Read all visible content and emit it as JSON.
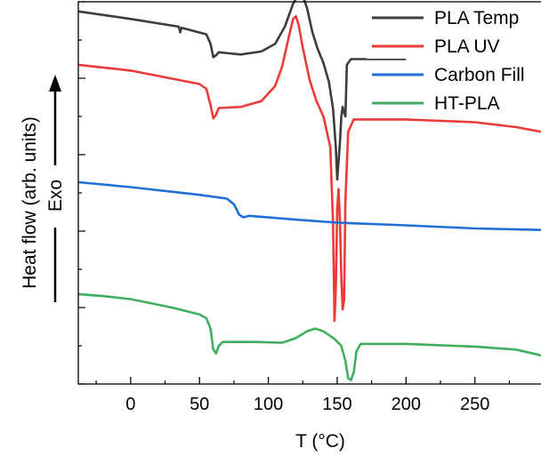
{
  "chart_data": {
    "type": "line",
    "xlabel": "T (°C)",
    "ylabel": "Heat flow (arb. units)",
    "ylabel_annotation": "Exo",
    "xlim": [
      -38,
      298
    ],
    "ylim": [
      0,
      10
    ],
    "xticks": [
      0,
      50,
      100,
      150,
      200,
      250
    ],
    "yticks_labeled": false,
    "legend": "top-right",
    "series": [
      {
        "name": "PLA Temp",
        "color": "#3c3c3c",
        "points": [
          [
            -38,
            9.75
          ],
          [
            0,
            9.55
          ],
          [
            35,
            9.35
          ],
          [
            36,
            9.2
          ],
          [
            37,
            9.32
          ],
          [
            55,
            9.15
          ],
          [
            58,
            8.9
          ],
          [
            60,
            8.55
          ],
          [
            62,
            8.6
          ],
          [
            64,
            8.68
          ],
          [
            80,
            8.62
          ],
          [
            95,
            8.7
          ],
          [
            105,
            8.9
          ],
          [
            112,
            9.35
          ],
          [
            118,
            9.95
          ],
          [
            122,
            10.2
          ],
          [
            125,
            10.15
          ],
          [
            128,
            9.85
          ],
          [
            132,
            9.2
          ],
          [
            136,
            8.75
          ],
          [
            140,
            8.4
          ],
          [
            144,
            7.9
          ],
          [
            147,
            7.2
          ],
          [
            149,
            6.2
          ],
          [
            150,
            5.35
          ],
          [
            152,
            6.3
          ],
          [
            153,
            7.0
          ],
          [
            154,
            7.25
          ],
          [
            155,
            7.1
          ],
          [
            156,
            7.0
          ],
          [
            157,
            8.35
          ],
          [
            160,
            8.5
          ],
          [
            185,
            8.5
          ],
          [
            200,
            8.5
          ]
        ]
      },
      {
        "name": "PLA UV",
        "color": "#ec3a3a",
        "points": [
          [
            -38,
            8.35
          ],
          [
            0,
            8.2
          ],
          [
            50,
            7.85
          ],
          [
            55,
            7.72
          ],
          [
            58,
            7.3
          ],
          [
            60,
            6.95
          ],
          [
            62,
            7.05
          ],
          [
            64,
            7.22
          ],
          [
            80,
            7.25
          ],
          [
            95,
            7.4
          ],
          [
            105,
            7.8
          ],
          [
            110,
            8.3
          ],
          [
            115,
            9.1
          ],
          [
            118,
            9.55
          ],
          [
            120,
            9.62
          ],
          [
            122,
            9.4
          ],
          [
            125,
            8.8
          ],
          [
            130,
            7.95
          ],
          [
            135,
            7.4
          ],
          [
            140,
            7.0
          ],
          [
            145,
            6.2
          ],
          [
            147,
            4.2
          ],
          [
            148,
            1.65
          ],
          [
            149,
            2.5
          ],
          [
            150,
            4.6
          ],
          [
            151,
            5.1
          ],
          [
            152,
            4.3
          ],
          [
            153,
            2.8
          ],
          [
            154,
            1.95
          ],
          [
            155,
            2.2
          ],
          [
            156,
            4.8
          ],
          [
            158,
            6.6
          ],
          [
            162,
            6.92
          ],
          [
            200,
            6.92
          ],
          [
            250,
            6.85
          ],
          [
            280,
            6.72
          ],
          [
            298,
            6.6
          ]
        ]
      },
      {
        "name": "Carbon Fill",
        "color": "#1f6fd6",
        "points": [
          [
            -38,
            5.28
          ],
          [
            0,
            5.15
          ],
          [
            50,
            4.95
          ],
          [
            70,
            4.85
          ],
          [
            75,
            4.7
          ],
          [
            79,
            4.42
          ],
          [
            82,
            4.36
          ],
          [
            86,
            4.4
          ],
          [
            120,
            4.3
          ],
          [
            150,
            4.22
          ],
          [
            200,
            4.15
          ],
          [
            250,
            4.07
          ],
          [
            298,
            4.03
          ]
        ]
      },
      {
        "name": "HT-PLA",
        "color": "#3fae5f",
        "points": [
          [
            -38,
            2.35
          ],
          [
            -20,
            2.3
          ],
          [
            0,
            2.22
          ],
          [
            30,
            2.0
          ],
          [
            50,
            1.82
          ],
          [
            55,
            1.72
          ],
          [
            58,
            1.45
          ],
          [
            60,
            0.9
          ],
          [
            62,
            0.8
          ],
          [
            64,
            1.0
          ],
          [
            67,
            1.1
          ],
          [
            90,
            1.1
          ],
          [
            110,
            1.08
          ],
          [
            120,
            1.2
          ],
          [
            128,
            1.38
          ],
          [
            134,
            1.45
          ],
          [
            140,
            1.38
          ],
          [
            148,
            1.18
          ],
          [
            153,
            1.0
          ],
          [
            156,
            0.6
          ],
          [
            158,
            0.15
          ],
          [
            160,
            0.1
          ],
          [
            162,
            0.3
          ],
          [
            164,
            0.85
          ],
          [
            167,
            1.05
          ],
          [
            200,
            1.05
          ],
          [
            250,
            0.98
          ],
          [
            280,
            0.9
          ],
          [
            298,
            0.75
          ]
        ]
      }
    ]
  }
}
